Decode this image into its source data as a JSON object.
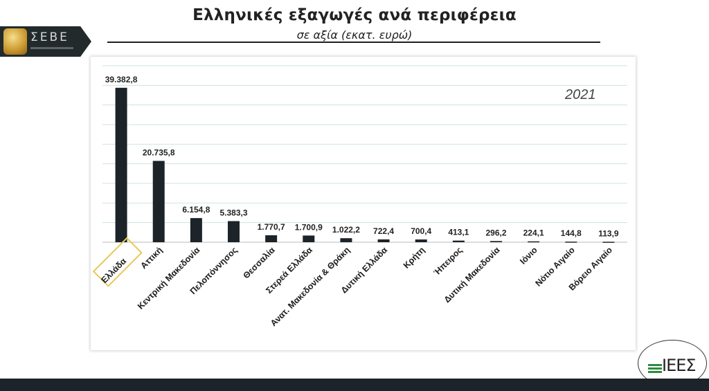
{
  "header": {
    "title": "Ελληνικές εξαγωγές ανά περιφέρεια",
    "subtitle": "σε αξία (εκατ. ευρώ)"
  },
  "logo": {
    "name": "ΣΕΒΕ",
    "icon": "seve-emblem-icon"
  },
  "brand": {
    "name": "ΙΕΕΣ"
  },
  "year_label": "2021",
  "colors": {
    "bar": "#1c2329",
    "grid": "#cfe3e3",
    "highlight": "#e8c75a"
  },
  "chart_data": {
    "type": "bar",
    "title": "Ελληνικές εξαγωγές ανά περιφέρεια",
    "subtitle": "σε αξία (εκατ. ευρώ)",
    "categories": [
      "Ελλάδα",
      "Αττική",
      "Κεντρική Μακεδονία",
      "Πελοπόννησος",
      "Θεσσαλία",
      "Στερεά Ελλάδα",
      "Ανατ. Μακεδονία & Θράκη",
      "Δυτική Ελλάδα",
      "Κρήτη",
      "Ήπειρος",
      "Δυτική Μακεδονία",
      "Ιόνιο",
      "Νότιο Αιγαίο",
      "Βόρειο Αιγαίο"
    ],
    "values": [
      39382.8,
      20735.8,
      6154.8,
      5383.3,
      1770.7,
      1700.9,
      1022.2,
      722.4,
      700.4,
      413.1,
      296.2,
      224.1,
      144.8,
      113.9
    ],
    "value_labels": [
      "39.382,8",
      "20.735,8",
      "6.154,8",
      "5.383,3",
      "1.770,7",
      "1.700,9",
      "1.022,2",
      "722,4",
      "700,4",
      "413,1",
      "296,2",
      "224,1",
      "144,8",
      "113,9"
    ],
    "highlighted_category": "Ελλάδα",
    "ylim": [
      0,
      45000
    ],
    "grid": true,
    "legend": "none",
    "annotation": "2021"
  }
}
